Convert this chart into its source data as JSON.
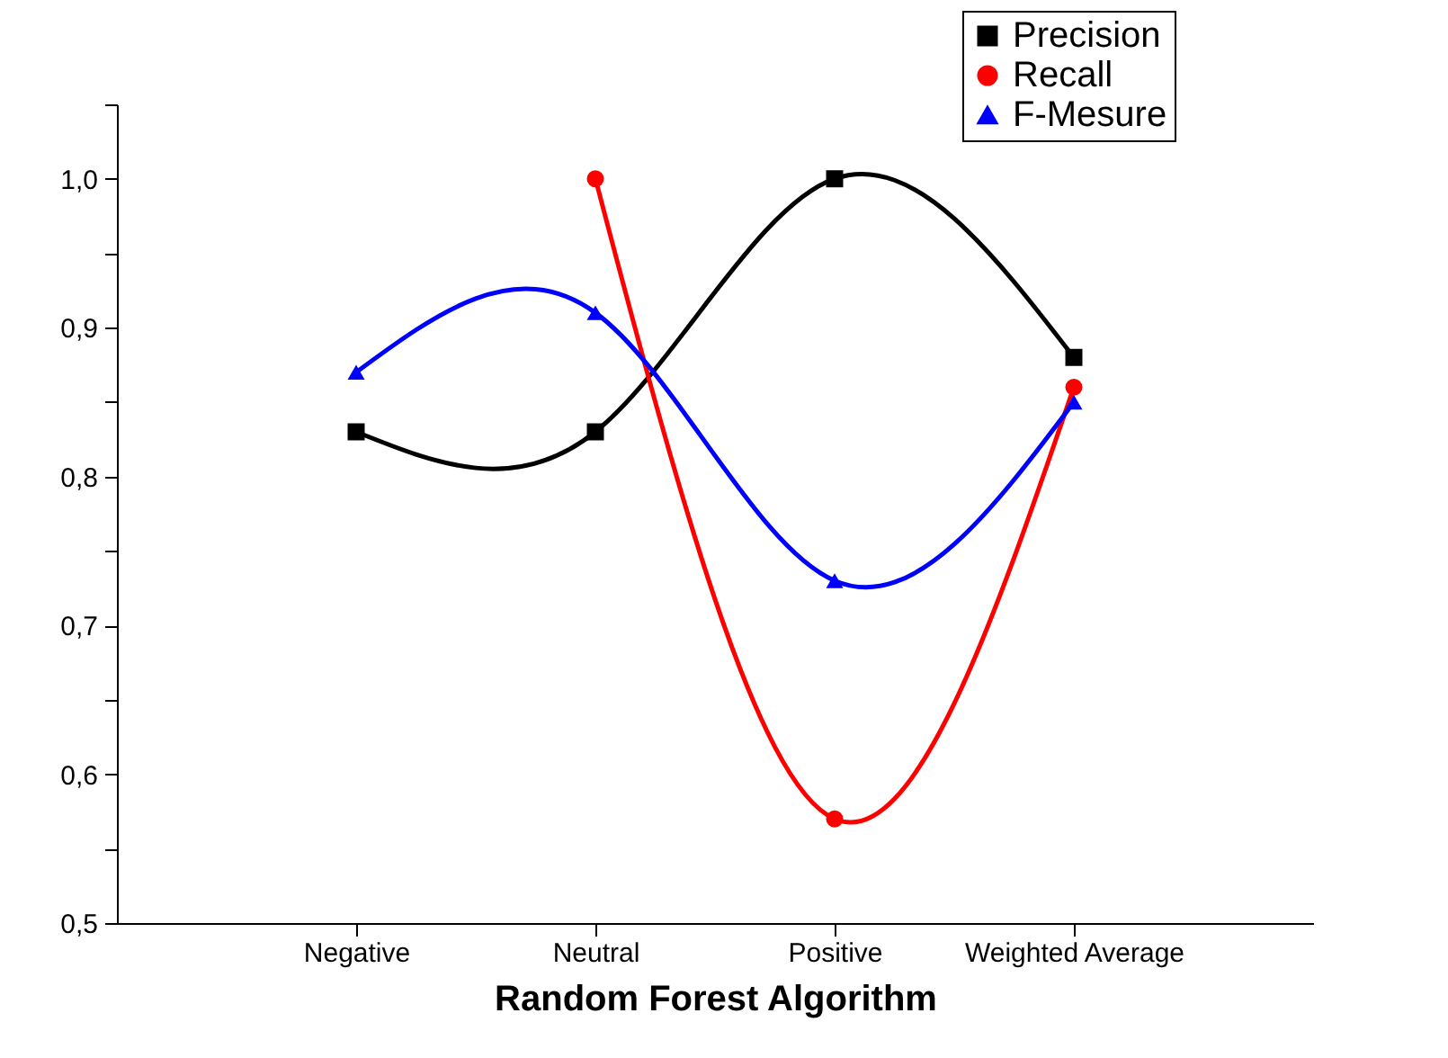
{
  "chart_data": {
    "type": "line",
    "xlabel": "Random Forest Algorithm",
    "categories": [
      "Negative",
      "Neutral",
      "Positive",
      "Weighted Average"
    ],
    "series": [
      {
        "name": "Precision",
        "color": "#000000",
        "marker": "square",
        "values": [
          0.83,
          0.83,
          1.0,
          0.88
        ]
      },
      {
        "name": "Recall",
        "color": "#ff0000",
        "marker": "circle",
        "values": [
          null,
          1.0,
          0.57,
          0.86
        ]
      },
      {
        "name": "F-Mesure",
        "color": "#0000ff",
        "marker": "triangle",
        "values": [
          0.87,
          0.91,
          0.73,
          0.85
        ]
      }
    ],
    "ylim": [
      0.5,
      1.05
    ],
    "yticks": [
      {
        "value": 0.5,
        "label": "0,5"
      },
      {
        "value": 0.55,
        "label": null
      },
      {
        "value": 0.6,
        "label": "0,6"
      },
      {
        "value": 0.65,
        "label": null
      },
      {
        "value": 0.7,
        "label": "0,7"
      },
      {
        "value": 0.75,
        "label": null
      },
      {
        "value": 0.8,
        "label": "0,8"
      },
      {
        "value": 0.85,
        "label": null
      },
      {
        "value": 0.9,
        "label": "0,9"
      },
      {
        "value": 0.95,
        "label": null
      },
      {
        "value": 1.0,
        "label": "1,0"
      },
      {
        "value": 1.05,
        "label": null
      }
    ],
    "grid": false,
    "legend": "top right"
  }
}
